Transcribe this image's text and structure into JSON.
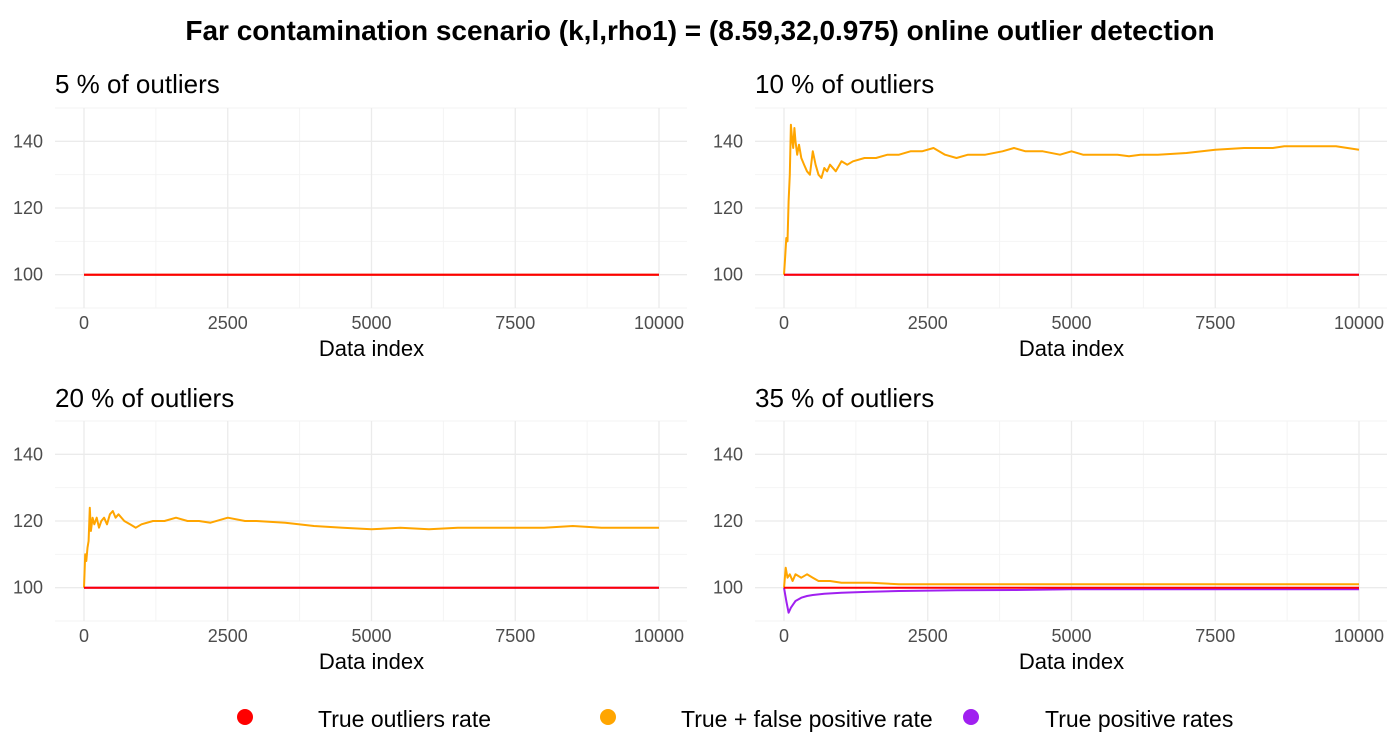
{
  "title": "Far contamination scenario (k,l,rho1) = (8.59,32,0.975) online outlier detection",
  "legend": {
    "position": "bottom",
    "entries": [
      {
        "label": "True outliers rate",
        "color": "#ff0000"
      },
      {
        "label": "True + false positive rate",
        "color": "#ffa500"
      },
      {
        "label": "True positive rates",
        "color": "#a020f0"
      }
    ]
  },
  "chart_data": [
    {
      "type": "line",
      "title": "5 % of outliers",
      "xlabel": "Data index",
      "ylabel": "",
      "xlim": [
        0,
        10000
      ],
      "ylim": [
        90,
        150
      ],
      "x_ticks": [
        0,
        2500,
        5000,
        7500,
        10000
      ],
      "y_ticks": [
        100,
        120,
        140
      ],
      "grid": true,
      "series": [
        {
          "name": "True outliers rate",
          "color": "#ff0000",
          "x": [
            0,
            10000
          ],
          "y": [
            100,
            100
          ]
        },
        {
          "name": "True + false positive rate",
          "color": "#ffa500",
          "x": [
            0,
            10000
          ],
          "y": [
            100,
            100
          ]
        },
        {
          "name": "True positive rates",
          "color": "#a020f0",
          "x": [
            0,
            10000
          ],
          "y": [
            100,
            100
          ]
        }
      ]
    },
    {
      "type": "line",
      "title": "10 % of outliers",
      "xlabel": "Data index",
      "ylabel": "",
      "xlim": [
        0,
        10000
      ],
      "ylim": [
        90,
        150
      ],
      "x_ticks": [
        0,
        2500,
        5000,
        7500,
        10000
      ],
      "y_ticks": [
        100,
        120,
        140
      ],
      "grid": true,
      "series": [
        {
          "name": "True outliers rate",
          "color": "#ff0000",
          "x": [
            0,
            10000
          ],
          "y": [
            100,
            100
          ]
        },
        {
          "name": "True + false positive rate",
          "color": "#ffa500",
          "x": [
            0,
            20,
            40,
            60,
            80,
            100,
            120,
            140,
            160,
            180,
            200,
            230,
            260,
            300,
            350,
            400,
            450,
            500,
            550,
            600,
            650,
            700,
            750,
            800,
            900,
            1000,
            1100,
            1200,
            1400,
            1600,
            1800,
            2000,
            2200,
            2400,
            2600,
            2800,
            3000,
            3200,
            3500,
            3800,
            4000,
            4200,
            4500,
            4800,
            5000,
            5200,
            5500,
            5800,
            6000,
            6200,
            6500,
            7000,
            7500,
            8000,
            8500,
            8700,
            9000,
            9300,
            9600,
            10000
          ],
          "y": [
            100,
            105,
            111,
            110,
            122,
            130,
            145,
            141,
            138,
            144,
            140,
            136,
            139,
            135,
            133,
            131,
            130,
            137,
            133,
            130,
            129,
            132,
            131,
            133,
            131,
            134,
            133,
            134,
            135,
            135,
            136,
            136,
            137,
            137,
            138,
            136,
            135,
            136,
            136,
            137,
            138,
            137,
            137,
            136,
            137,
            136,
            136,
            136,
            135.5,
            136,
            136,
            136.5,
            137.5,
            138,
            138,
            138.5,
            138.5,
            138.5,
            138.5,
            137.5
          ]
        },
        {
          "name": "True positive rates",
          "color": "#a020f0",
          "x": [
            0,
            10000
          ],
          "y": [
            100,
            100
          ]
        }
      ]
    },
    {
      "type": "line",
      "title": "20 % of outliers",
      "xlabel": "Data index",
      "ylabel": "",
      "xlim": [
        0,
        10000
      ],
      "ylim": [
        90,
        150
      ],
      "x_ticks": [
        0,
        2500,
        5000,
        7500,
        10000
      ],
      "y_ticks": [
        100,
        120,
        140
      ],
      "grid": true,
      "series": [
        {
          "name": "True outliers rate",
          "color": "#ff0000",
          "x": [
            0,
            10000
          ],
          "y": [
            100,
            100
          ]
        },
        {
          "name": "True + false positive rate",
          "color": "#ffa500",
          "x": [
            0,
            20,
            40,
            60,
            80,
            100,
            120,
            150,
            180,
            220,
            260,
            300,
            350,
            400,
            450,
            500,
            550,
            600,
            700,
            800,
            900,
            1000,
            1200,
            1400,
            1600,
            1800,
            2000,
            2200,
            2500,
            2800,
            3000,
            3500,
            4000,
            4500,
            5000,
            5500,
            6000,
            6500,
            7000,
            7500,
            8000,
            8500,
            9000,
            9500,
            10000
          ],
          "y": [
            100,
            110,
            108,
            112,
            114,
            124,
            117,
            121,
            119,
            121,
            118,
            120,
            121,
            119,
            122,
            123,
            121,
            122,
            120,
            119,
            118,
            119,
            120,
            120,
            121,
            120,
            120,
            119.5,
            121,
            120,
            120,
            119.5,
            118.5,
            118,
            117.5,
            118,
            117.5,
            118,
            118,
            118,
            118,
            118.5,
            118,
            118,
            118
          ]
        },
        {
          "name": "True positive rates",
          "color": "#a020f0",
          "x": [
            0,
            10000
          ],
          "y": [
            100,
            100
          ]
        }
      ]
    },
    {
      "type": "line",
      "title": "35 % of outliers",
      "xlabel": "Data index",
      "ylabel": "",
      "xlim": [
        0,
        10000
      ],
      "ylim": [
        90,
        150
      ],
      "x_ticks": [
        0,
        2500,
        5000,
        7500,
        10000
      ],
      "y_ticks": [
        100,
        120,
        140
      ],
      "grid": true,
      "series": [
        {
          "name": "True outliers rate",
          "color": "#ff0000",
          "x": [
            0,
            10000
          ],
          "y": [
            100,
            100
          ]
        },
        {
          "name": "True + false positive rate",
          "color": "#ffa500",
          "x": [
            0,
            30,
            60,
            100,
            150,
            200,
            300,
            400,
            500,
            600,
            700,
            800,
            1000,
            1200,
            1500,
            2000,
            2500,
            3000,
            3500,
            4000,
            5000,
            6000,
            7000,
            8000,
            9000,
            10000
          ],
          "y": [
            100,
            106,
            103,
            104,
            102,
            104,
            103,
            104,
            103,
            102,
            102,
            102,
            101.5,
            101.5,
            101.5,
            101,
            101,
            101,
            101,
            101,
            101,
            101,
            101,
            101,
            101,
            101
          ]
        },
        {
          "name": "True positive rates",
          "color": "#a020f0",
          "x": [
            0,
            40,
            80,
            120,
            160,
            200,
            300,
            400,
            500,
            700,
            1000,
            1500,
            2000,
            3000,
            4000,
            5000,
            6000,
            7000,
            8000,
            9000,
            10000
          ],
          "y": [
            100,
            96,
            92.5,
            94,
            95,
            96,
            97,
            97.5,
            97.8,
            98.2,
            98.5,
            98.8,
            99,
            99.2,
            99.3,
            99.5,
            99.5,
            99.5,
            99.5,
            99.5,
            99.5
          ]
        }
      ]
    }
  ]
}
